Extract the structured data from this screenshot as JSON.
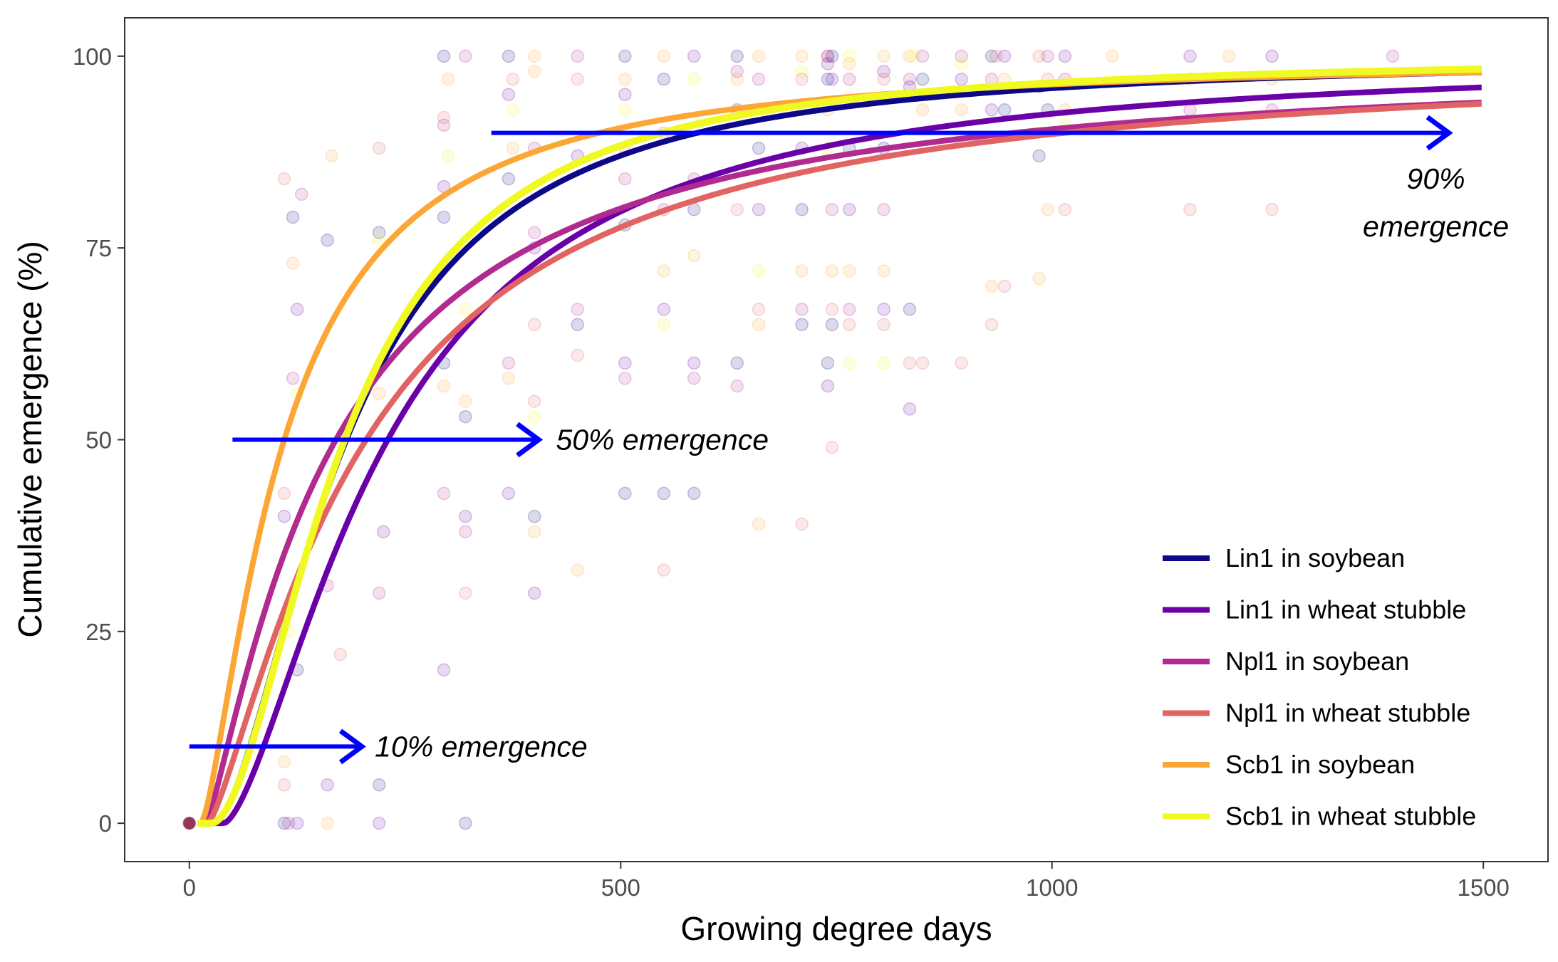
{
  "chart_data": {
    "type": "line",
    "title": "",
    "xlabel": "Growing degree days",
    "ylabel": "Cumulative emergence (%)",
    "xlim": [
      -75,
      1575
    ],
    "ylim": [
      -5,
      105
    ],
    "x_ticks": [
      0,
      500,
      1000,
      1500
    ],
    "y_ticks": [
      0,
      25,
      50,
      75,
      100
    ],
    "grid": false,
    "legend_position": "bottom-right",
    "series": [
      {
        "name": "Lin1 in soybean",
        "color": "#0d0887",
        "model": {
          "x0": 28,
          "xmid": 182,
          "hill": 1.7,
          "asym": 100
        }
      },
      {
        "name": "Lin1 in wheat stubble",
        "color": "#6a00a8",
        "model": {
          "x0": 40,
          "xmid": 230,
          "hill": 1.55,
          "asym": 100
        }
      },
      {
        "name": "Npl1 in soybean",
        "color": "#b12a90",
        "model": {
          "x0": 20,
          "xmid": 170,
          "hill": 1.2,
          "asym": 100
        }
      },
      {
        "name": "Npl1 in wheat stubble",
        "color": "#e16462",
        "model": {
          "x0": 22,
          "xmid": 205,
          "hill": 1.3,
          "asym": 100
        }
      },
      {
        "name": "Scb1 in soybean",
        "color": "#fca636",
        "model": {
          "x0": 14,
          "xmid": 110,
          "hill": 1.4,
          "asym": 100
        }
      },
      {
        "name": "Scb1 in wheat stubble",
        "color": "#f0f921",
        "model": {
          "x0": 26,
          "xmid": 180,
          "hill": 1.8,
          "asym": 100
        }
      }
    ],
    "observations": {
      "point_alpha": 0.15,
      "points": [
        [
          0,
          0,
          0
        ],
        [
          0,
          0,
          1
        ],
        [
          0,
          0,
          2
        ],
        [
          0,
          0,
          3
        ],
        [
          0,
          0,
          4
        ],
        [
          0,
          0,
          5
        ],
        [
          110,
          0,
          0
        ],
        [
          115,
          0,
          2
        ],
        [
          125,
          0,
          1
        ],
        [
          160,
          0,
          4
        ],
        [
          220,
          0,
          1
        ],
        [
          320,
          0,
          0
        ],
        [
          110,
          40,
          1
        ],
        [
          110,
          5,
          3
        ],
        [
          115,
          25,
          5
        ],
        [
          120,
          58,
          2
        ],
        [
          125,
          20,
          0
        ],
        [
          120,
          73,
          4
        ],
        [
          120,
          79,
          0
        ],
        [
          130,
          82,
          2
        ],
        [
          110,
          43,
          3
        ],
        [
          110,
          84,
          3
        ],
        [
          125,
          67,
          1
        ],
        [
          125,
          56,
          5
        ],
        [
          110,
          8,
          4
        ],
        [
          160,
          76,
          0
        ],
        [
          165,
          87,
          4
        ],
        [
          160,
          31,
          2
        ],
        [
          175,
          22,
          3
        ],
        [
          220,
          88,
          3
        ],
        [
          220,
          77,
          0
        ],
        [
          220,
          76,
          5
        ],
        [
          225,
          38,
          1
        ],
        [
          220,
          56,
          4
        ],
        [
          220,
          30,
          2
        ],
        [
          220,
          5,
          0
        ],
        [
          160,
          5,
          1
        ],
        [
          295,
          92,
          3
        ],
        [
          295,
          79,
          0
        ],
        [
          295,
          83,
          1
        ],
        [
          295,
          91,
          2
        ],
        [
          295,
          57,
          4
        ],
        [
          295,
          60,
          0
        ],
        [
          295,
          43,
          2
        ],
        [
          295,
          20,
          1
        ],
        [
          295,
          100,
          0
        ],
        [
          300,
          97,
          4
        ],
        [
          300,
          87,
          5
        ],
        [
          320,
          100,
          2
        ],
        [
          320,
          40,
          1
        ],
        [
          320,
          53,
          0
        ],
        [
          320,
          30,
          3
        ],
        [
          320,
          55,
          4
        ],
        [
          320,
          67,
          5
        ],
        [
          320,
          38,
          2
        ],
        [
          370,
          95,
          1
        ],
        [
          370,
          84,
          0
        ],
        [
          370,
          60,
          2
        ],
        [
          370,
          58,
          4
        ],
        [
          370,
          43,
          1
        ],
        [
          370,
          100,
          0
        ],
        [
          375,
          88,
          4
        ],
        [
          375,
          97,
          3
        ],
        [
          375,
          93,
          5
        ],
        [
          400,
          100,
          4
        ],
        [
          400,
          77,
          2
        ],
        [
          400,
          75,
          1
        ],
        [
          400,
          65,
          3
        ],
        [
          400,
          40,
          0
        ],
        [
          400,
          38,
          4
        ],
        [
          400,
          30,
          1
        ],
        [
          400,
          55,
          3
        ],
        [
          400,
          53,
          5
        ],
        [
          400,
          88,
          2
        ],
        [
          400,
          98,
          4
        ],
        [
          450,
          100,
          2
        ],
        [
          450,
          97,
          3
        ],
        [
          450,
          87,
          1
        ],
        [
          450,
          65,
          0
        ],
        [
          450,
          67,
          2
        ],
        [
          450,
          61,
          3
        ],
        [
          450,
          33,
          4
        ],
        [
          505,
          100,
          0
        ],
        [
          505,
          97,
          4
        ],
        [
          505,
          95,
          1
        ],
        [
          505,
          84,
          2
        ],
        [
          505,
          78,
          0
        ],
        [
          505,
          60,
          1
        ],
        [
          505,
          58,
          2
        ],
        [
          505,
          43,
          0
        ],
        [
          505,
          88,
          3
        ],
        [
          505,
          93,
          5
        ],
        [
          550,
          100,
          4
        ],
        [
          550,
          97,
          0
        ],
        [
          550,
          90,
          3
        ],
        [
          550,
          80,
          2
        ],
        [
          550,
          67,
          1
        ],
        [
          550,
          65,
          5
        ],
        [
          550,
          72,
          4
        ],
        [
          550,
          33,
          3
        ],
        [
          550,
          43,
          0
        ],
        [
          585,
          100,
          1
        ],
        [
          585,
          97,
          5
        ],
        [
          585,
          84,
          2
        ],
        [
          585,
          80,
          0
        ],
        [
          585,
          60,
          1
        ],
        [
          585,
          58,
          2
        ],
        [
          585,
          43,
          0
        ],
        [
          585,
          74,
          4
        ],
        [
          635,
          100,
          0
        ],
        [
          635,
          98,
          2
        ],
        [
          635,
          97,
          4
        ],
        [
          635,
          93,
          1
        ],
        [
          635,
          80,
          3
        ],
        [
          635,
          60,
          0
        ],
        [
          635,
          57,
          2
        ],
        [
          660,
          100,
          4
        ],
        [
          660,
          97,
          2
        ],
        [
          660,
          88,
          0
        ],
        [
          660,
          80,
          1
        ],
        [
          660,
          67,
          3
        ],
        [
          660,
          65,
          4
        ],
        [
          660,
          72,
          5
        ],
        [
          660,
          39,
          4
        ],
        [
          710,
          100,
          4
        ],
        [
          710,
          98,
          5
        ],
        [
          710,
          97,
          3
        ],
        [
          710,
          88,
          1
        ],
        [
          710,
          80,
          0
        ],
        [
          710,
          67,
          2
        ],
        [
          710,
          65,
          0
        ],
        [
          710,
          72,
          4
        ],
        [
          710,
          39,
          3
        ],
        [
          740,
          100,
          3
        ],
        [
          740,
          100,
          2
        ],
        [
          740,
          99,
          1
        ],
        [
          740,
          97,
          0
        ],
        [
          740,
          93,
          4
        ],
        [
          740,
          88,
          5
        ],
        [
          740,
          60,
          0
        ],
        [
          740,
          57,
          1
        ],
        [
          745,
          100,
          0
        ],
        [
          745,
          97,
          1
        ],
        [
          745,
          80,
          2
        ],
        [
          745,
          67,
          3
        ],
        [
          745,
          65,
          0
        ],
        [
          745,
          72,
          4
        ],
        [
          745,
          49,
          3
        ],
        [
          765,
          100,
          5
        ],
        [
          765,
          99,
          4
        ],
        [
          765,
          97,
          2
        ],
        [
          765,
          88,
          0
        ],
        [
          765,
          80,
          1
        ],
        [
          765,
          67,
          2
        ],
        [
          765,
          65,
          3
        ],
        [
          765,
          72,
          4
        ],
        [
          765,
          60,
          5
        ],
        [
          805,
          100,
          4
        ],
        [
          805,
          98,
          1
        ],
        [
          805,
          97,
          3
        ],
        [
          805,
          88,
          0
        ],
        [
          805,
          80,
          2
        ],
        [
          805,
          67,
          1
        ],
        [
          805,
          65,
          3
        ],
        [
          805,
          72,
          4
        ],
        [
          805,
          60,
          5
        ],
        [
          835,
          100,
          4
        ],
        [
          835,
          97,
          2
        ],
        [
          835,
          96,
          1
        ],
        [
          835,
          67,
          0
        ],
        [
          835,
          54,
          1
        ],
        [
          835,
          60,
          3
        ],
        [
          840,
          100,
          5
        ],
        [
          850,
          100,
          2
        ],
        [
          850,
          97,
          0
        ],
        [
          850,
          93,
          4
        ],
        [
          850,
          60,
          3
        ],
        [
          895,
          100,
          2
        ],
        [
          895,
          97,
          1
        ],
        [
          895,
          93,
          4
        ],
        [
          895,
          60,
          3
        ],
        [
          895,
          99,
          5
        ],
        [
          930,
          100,
          0
        ],
        [
          930,
          97,
          2
        ],
        [
          930,
          93,
          1
        ],
        [
          930,
          70,
          4
        ],
        [
          930,
          65,
          3
        ],
        [
          935,
          100,
          3
        ],
        [
          945,
          100,
          1
        ],
        [
          945,
          97,
          4
        ],
        [
          945,
          93,
          0
        ],
        [
          945,
          70,
          3
        ],
        [
          985,
          100,
          3
        ],
        [
          985,
          96,
          1
        ],
        [
          985,
          87,
          0
        ],
        [
          985,
          71,
          4
        ],
        [
          995,
          100,
          2
        ],
        [
          995,
          97,
          3
        ],
        [
          995,
          93,
          0
        ],
        [
          995,
          80,
          4
        ],
        [
          1015,
          100,
          1
        ],
        [
          1015,
          97,
          2
        ],
        [
          1015,
          93,
          4
        ],
        [
          1015,
          80,
          3
        ],
        [
          1015,
          91,
          5
        ],
        [
          1070,
          100,
          4
        ],
        [
          1160,
          100,
          1
        ],
        [
          1160,
          97,
          4
        ],
        [
          1160,
          93,
          2
        ],
        [
          1160,
          80,
          3
        ],
        [
          1205,
          100,
          4
        ],
        [
          1255,
          100,
          1
        ],
        [
          1255,
          97,
          4
        ],
        [
          1255,
          93,
          2
        ],
        [
          1255,
          80,
          3
        ],
        [
          1395,
          100,
          2
        ]
      ]
    },
    "annotations": [
      {
        "text": "10% emergence",
        "arrow_from": [
          0,
          10
        ],
        "arrow_to": [
          200,
          10
        ],
        "text_anchor": [
          215,
          10
        ]
      },
      {
        "text": "50% emergence",
        "arrow_from": [
          50,
          50
        ],
        "arrow_to": [
          405,
          50
        ],
        "text_anchor": [
          425,
          50
        ]
      },
      {
        "lines": [
          "90%",
          "emergence"
        ],
        "arrow_from": [
          350,
          90
        ],
        "arrow_to": [
          1460,
          90
        ],
        "text_anchor": [
          1445,
          84
        ]
      }
    ],
    "annotation_color": "#0000ff"
  }
}
